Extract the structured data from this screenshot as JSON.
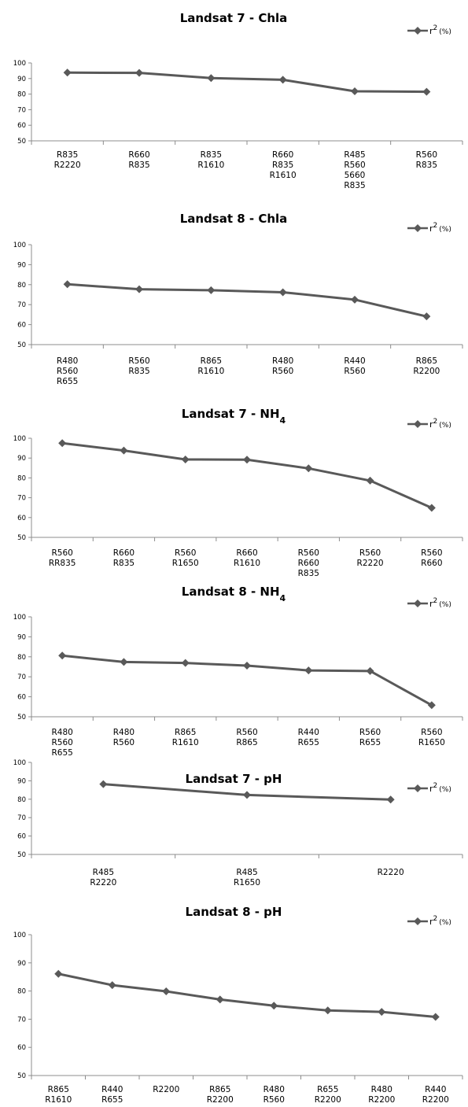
{
  "chart_data": [
    {
      "type": "line",
      "title": "Landsat 7 - Chla",
      "legend": {
        "label_base": "r",
        "label_sup": "2",
        "label_unit": "(%)",
        "placement": "top-right"
      },
      "categories": [
        [
          "R835",
          "R2220"
        ],
        [
          "R660",
          "R835"
        ],
        [
          "R835",
          "R1610"
        ],
        [
          "R660",
          "R835",
          "R1610"
        ],
        [
          "R485",
          "R560",
          "5660",
          "R835"
        ],
        [
          "R560",
          "R835"
        ]
      ],
      "series": [
        {
          "name": "r2 (%)",
          "values": [
            93.8,
            93.6,
            90.3,
            89.2,
            81.8,
            81.5
          ]
        }
      ],
      "y_ticks": [
        "50",
        "60",
        "70",
        "80",
        "90",
        "100"
      ],
      "ylim": [
        50,
        100
      ],
      "color": "#595959"
    },
    {
      "type": "line",
      "title": "Landsat 8 - Chla",
      "legend": {
        "label_base": "r",
        "label_sup": "2",
        "label_unit": "(%)",
        "placement": "top-right"
      },
      "categories": [
        [
          "R480",
          "R560",
          "R655"
        ],
        [
          "R560",
          "R835"
        ],
        [
          "R865",
          "R1610"
        ],
        [
          "R480",
          "R560"
        ],
        [
          "R440",
          "R560"
        ],
        [
          "R865",
          "R2200"
        ]
      ],
      "series": [
        {
          "name": "r2 (%)",
          "values": [
            80.2,
            77.7,
            77.2,
            76.2,
            72.5,
            64.1
          ]
        }
      ],
      "y_ticks": [
        "50",
        "60",
        "70",
        "80",
        "90",
        "100"
      ],
      "ylim": [
        50,
        100
      ],
      "color": "#595959"
    },
    {
      "type": "line",
      "title": "Landsat 7 - NH",
      "title_sub": "4",
      "legend": {
        "label_base": "r",
        "label_sup": "2",
        "label_unit": "(%)",
        "placement": "top-right"
      },
      "categories": [
        [
          "R560",
          "RR835"
        ],
        [
          "R660",
          "R835"
        ],
        [
          "R560",
          "R1650"
        ],
        [
          "R660",
          "R1610"
        ],
        [
          "R560",
          "R660",
          "R835"
        ],
        [
          "R560",
          "R2220"
        ],
        [
          "R560",
          "R660"
        ]
      ],
      "series": [
        {
          "name": "r2 (%)",
          "values": [
            97.5,
            93.8,
            89.3,
            89.2,
            84.8,
            78.6,
            64.9
          ]
        }
      ],
      "y_ticks": [
        "50",
        "60",
        "70",
        "80",
        "90",
        "100"
      ],
      "ylim": [
        50,
        100
      ],
      "color": "#595959"
    },
    {
      "type": "line",
      "title": "Landsat 8 - NH",
      "title_sub": "4",
      "legend": {
        "label_base": "r",
        "label_sup": "2",
        "label_unit": "(%)",
        "placement": "top-right"
      },
      "categories": [
        [
          "R480",
          "R560",
          "R655"
        ],
        [
          "R480",
          "R560"
        ],
        [
          "R865",
          "R1610"
        ],
        [
          "R560",
          "R865"
        ],
        [
          "R440",
          "R655"
        ],
        [
          "R560",
          "R655"
        ],
        [
          "R560",
          "R1650"
        ]
      ],
      "series": [
        {
          "name": "r2 (%)",
          "values": [
            80.6,
            77.4,
            76.9,
            75.6,
            73.2,
            72.9,
            55.8
          ]
        }
      ],
      "y_ticks": [
        "50",
        "60",
        "70",
        "80",
        "90",
        "100"
      ],
      "ylim": [
        50,
        100
      ],
      "color": "#595959"
    },
    {
      "type": "line",
      "title": "Landsat 7 - pH",
      "legend": {
        "label_base": "r",
        "label_sup": "2",
        "label_unit": "(%)",
        "placement": "top-right"
      },
      "categories": [
        [
          "R485",
          "R2220"
        ],
        [
          "R485",
          "R1650"
        ],
        [
          "R2220"
        ]
      ],
      "series": [
        {
          "name": "r2 (%)",
          "values": [
            88.2,
            82.3,
            79.8
          ]
        }
      ],
      "y_ticks": [
        "50",
        "60",
        "70",
        "80",
        "90",
        "100"
      ],
      "ylim": [
        50,
        100
      ],
      "color": "#595959"
    },
    {
      "type": "line",
      "title": "Landsat 8 - pH",
      "legend": {
        "label_base": "r",
        "label_sup": "2",
        "label_unit": "(%)",
        "placement": "top-right"
      },
      "categories": [
        [
          "R865",
          "R1610"
        ],
        [
          "R440",
          "R655"
        ],
        [
          "R2200"
        ],
        [
          "R865",
          "R2200"
        ],
        [
          "R480",
          "R560"
        ],
        [
          "R655",
          "R2200"
        ],
        [
          "R480",
          "R2200"
        ],
        [
          "R440",
          "R2200"
        ]
      ],
      "series": [
        {
          "name": "r2 (%)",
          "values": [
            86.1,
            82.1,
            79.9,
            77.0,
            74.8,
            73.1,
            72.6,
            70.8
          ]
        }
      ],
      "y_ticks": [
        "50",
        "60",
        "70",
        "80",
        "90",
        "100"
      ],
      "ylim": [
        50,
        100
      ],
      "color": "#595959"
    }
  ]
}
